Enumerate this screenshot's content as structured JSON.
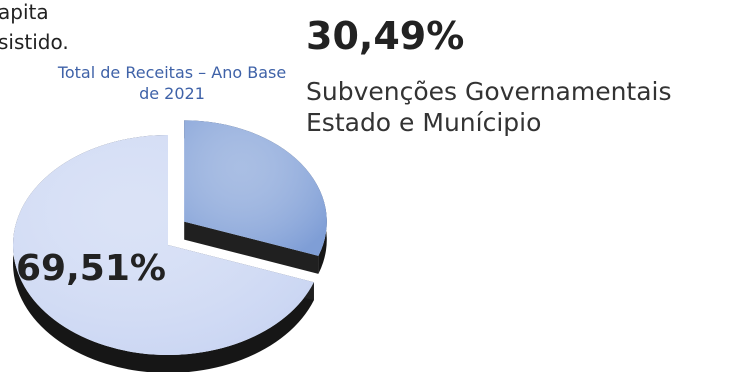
{
  "fragments": {
    "line1": "apita",
    "line2": "sistido."
  },
  "chart_data": {
    "type": "pie",
    "title": "Total de Receitas – Ano Base de 2021",
    "slices": [
      {
        "label": "Subvenções Governamentais Estado e Município",
        "value": 30.49,
        "display": "30,49%",
        "color": "#7f9ed6",
        "exploded": true
      },
      {
        "label": "",
        "value": 69.51,
        "display": "69,51%",
        "color": "#c8d4f2",
        "exploded": false
      }
    ],
    "legend_text": [
      "Subvenções Governamentais",
      "Estado e Munícipio"
    ]
  }
}
